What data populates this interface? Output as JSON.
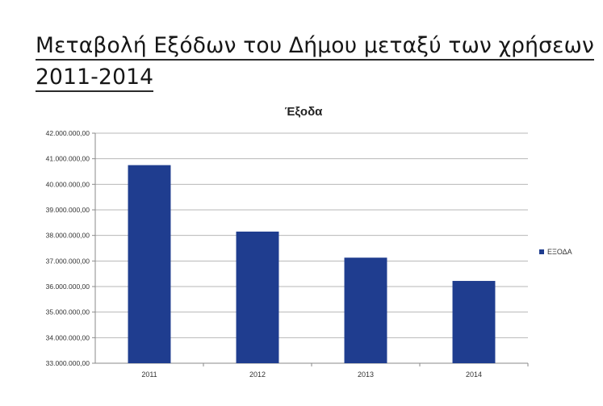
{
  "page": {
    "heading_line1": "Μεταβολή Εξόδων του Δήμου μεταξύ των χρήσεων",
    "heading_line2": "2011-2014"
  },
  "colors": {
    "bar": "#1f3d8f",
    "grid": "#b7b7b7",
    "axis": "#8a8a8a",
    "text": "#333333"
  },
  "chart_data": {
    "type": "bar",
    "title": "Έξοδα",
    "categories": [
      "2011",
      "2012",
      "2013",
      "2014"
    ],
    "series": [
      {
        "name": "ΕΞΟΔΑ",
        "values": [
          40750000,
          38150000,
          37130000,
          36220000
        ]
      }
    ],
    "ylim": [
      33000000,
      42000000
    ],
    "yticks": [
      {
        "value": 33000000,
        "label": "33.000.000,00"
      },
      {
        "value": 34000000,
        "label": "34.000.000,00"
      },
      {
        "value": 35000000,
        "label": "35.000.000,00"
      },
      {
        "value": 36000000,
        "label": "36.000.000,00"
      },
      {
        "value": 37000000,
        "label": "37.000.000,00"
      },
      {
        "value": 38000000,
        "label": "38.000.000,00"
      },
      {
        "value": 39000000,
        "label": "39.000.000,00"
      },
      {
        "value": 40000000,
        "label": "40.000.000,00"
      },
      {
        "value": 41000000,
        "label": "41.000.000,00"
      },
      {
        "value": 42000000,
        "label": "42.000.000,00"
      }
    ],
    "xlabel": "",
    "ylabel": "",
    "grid": true,
    "legend_position": "right"
  }
}
